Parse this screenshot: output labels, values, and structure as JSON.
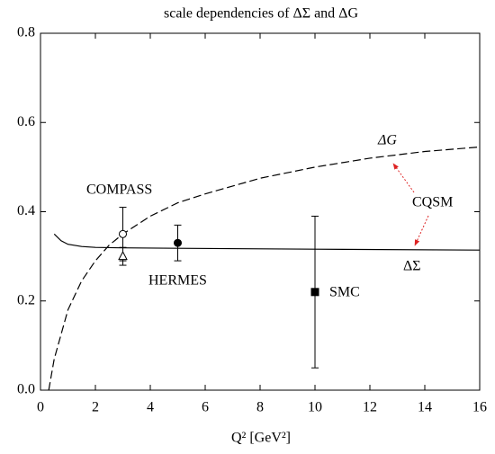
{
  "chart_data": {
    "type": "line",
    "title": "scale dependencies of ΔΣ and ΔG",
    "x_label": "Q² [GeV²]",
    "xlim": [
      0,
      16
    ],
    "ylim": [
      0,
      0.8
    ],
    "xticks": [
      0,
      2,
      4,
      6,
      8,
      10,
      12,
      14,
      16
    ],
    "yticks": [
      {
        "value": 0,
        "label": "0.0"
      },
      0.2,
      0.4,
      0.6,
      0.8
    ],
    "series": [
      {
        "name": "ΔG",
        "color": "#000000",
        "dash": true,
        "x": [
          0.3,
          0.5,
          1,
          1.5,
          2,
          2.5,
          3,
          4,
          5,
          6,
          8,
          10,
          12,
          14,
          16
        ],
        "values": [
          0,
          0.07,
          0.18,
          0.245,
          0.29,
          0.325,
          0.35,
          0.39,
          0.42,
          0.44,
          0.475,
          0.5,
          0.52,
          0.535,
          0.545
        ]
      },
      {
        "name": "ΔΣ",
        "color": "#000000",
        "dash": false,
        "x": [
          0.5,
          0.75,
          1,
          1.5,
          2,
          3,
          5,
          10,
          16
        ],
        "values": [
          0.35,
          0.335,
          0.327,
          0.322,
          0.32,
          0.319,
          0.318,
          0.316,
          0.314
        ]
      }
    ],
    "points": [
      {
        "marker": "circle",
        "filled": false,
        "x": 3,
        "y": 0.35,
        "error": 0.06
      },
      {
        "marker": "triangle",
        "filled": false,
        "x": 3,
        "y": 0.3,
        "error": 0.02
      },
      {
        "marker": "circle",
        "filled": true,
        "x": 5,
        "y": 0.33,
        "error": 0.04
      },
      {
        "marker": "square",
        "filled": true,
        "x": 10,
        "y": 0.22,
        "error": 0.17
      }
    ],
    "annotations": [
      "COMPASS",
      "HERMES",
      "SMC",
      "CQSM"
    ],
    "arrow_color": "#dd2222"
  }
}
